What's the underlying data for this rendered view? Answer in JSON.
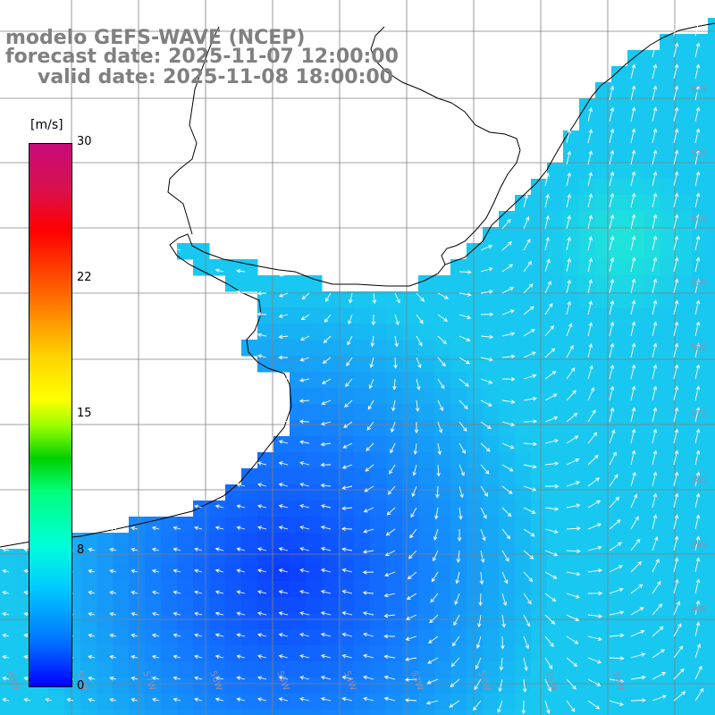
{
  "title": {
    "line1": "modelo GEFS-WAVE (NCEP)",
    "line2": "forecast date: 2025-11-07 12:00:00",
    "line3": "valid date: 2025-11-08 18:00:00"
  },
  "colorbar": {
    "unit": "[m/s]",
    "ticks": [
      "30",
      "22",
      "15",
      "8",
      "0"
    ],
    "tick_values": [
      30,
      22,
      15,
      8,
      0
    ],
    "colors": [
      "#c80a7a",
      "#ff0000",
      "#ff6a00",
      "#ffff00",
      "#00d000",
      "#00ffd8",
      "#00c8ff",
      "#0000ff"
    ]
  },
  "map": {
    "region": "South America – Atlantic coast (Argentina / Uruguay / Southern Brazil)",
    "lon_labels": [
      "60W",
      "58W",
      "57W",
      "56W",
      "55W",
      "54W",
      "53W",
      "52W",
      "51W",
      "50W"
    ],
    "lat_labels": [
      "32S",
      "33S",
      "34S",
      "35S",
      "36S",
      "37S",
      "38S",
      "39S",
      "40S"
    ],
    "land_color": "#ffffff",
    "coast_color": "#000000",
    "grid_color": "#808080",
    "arrow_color": "#ffffff",
    "field_colors": {
      "low": "#0a3cff",
      "mid": "#1478ff",
      "high": "#18c8f0",
      "peak": "#20e8d8"
    }
  }
}
